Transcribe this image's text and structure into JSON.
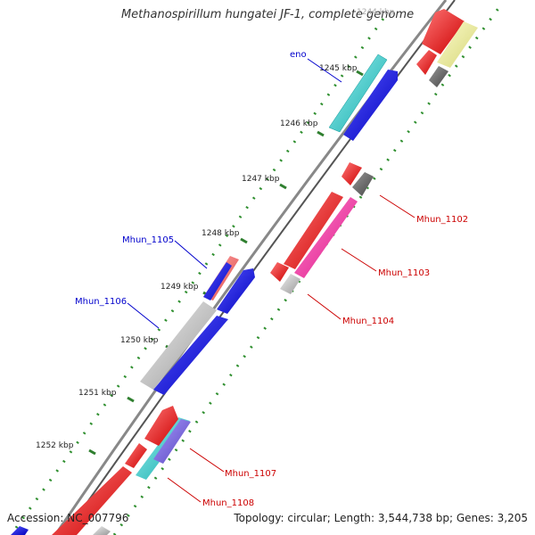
{
  "header": {
    "title": "Methanospirillum hungatei JF-1, complete genome"
  },
  "footer": {
    "accession": "Accession: NC_007796",
    "stats": "Topology: circular; Length: 3,544,738 bp; Genes: 3,205"
  },
  "ruler": {
    "top_label": "1244 kbp",
    "labels": [
      "1245 kbp",
      "1246 kbp",
      "1247 kbp",
      "1248 kbp",
      "1249 kbp",
      "1250 kbp",
      "1251 kbp",
      "1252 kbp"
    ]
  },
  "gene_labels": {
    "left": [
      "eno",
      "Mhun_1105",
      "Mhun_1106"
    ],
    "right": [
      "Mhun_1102",
      "Mhun_1103",
      "Mhun_1104",
      "Mhun_1107",
      "Mhun_1108"
    ]
  },
  "colors": {
    "backbone": "#7a7a7a",
    "tick_dots": "#2f8f2f",
    "left_label": "#0000cc",
    "right_label": "#cc0000",
    "red": "#ee1111",
    "blue": "#0a0ae0",
    "cyan": "#22c8c8",
    "pink": "#ff2299",
    "gray": "#666666",
    "light_gray": "#bdbdbd",
    "yellow": "#eeee99",
    "violet": "#7766dd"
  }
}
